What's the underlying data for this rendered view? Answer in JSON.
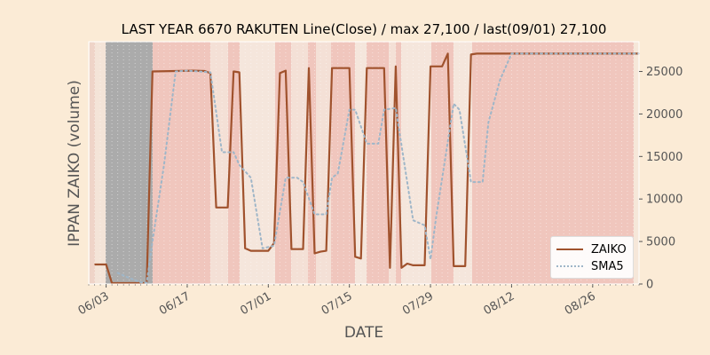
{
  "chart_data": {
    "type": "line",
    "title": "LAST YEAR 6670 RAKUTEN Line(Close) / max 27,100 / last(09/01) 27,100",
    "xlabel": "DATE",
    "ylabel": "IPPAN ZAIKO (volume)",
    "ylim": [
      0,
      28500
    ],
    "yticks": [
      0,
      5000,
      10000,
      15000,
      20000,
      25000
    ],
    "xticks": [
      {
        "label": "06/03",
        "day": 2
      },
      {
        "label": "06/17",
        "day": 16
      },
      {
        "label": "07/01",
        "day": 30
      },
      {
        "label": "07/15",
        "day": 44
      },
      {
        "label": "07/29",
        "day": 58
      },
      {
        "label": "08/12",
        "day": 72
      },
      {
        "label": "08/26",
        "day": 86
      }
    ],
    "x_day_range": [
      -1,
      94
    ],
    "legend_position": "lower-right",
    "grid": false,
    "series": [
      {
        "name": "ZAIKO",
        "color": "#a0522d",
        "style": "solid",
        "points": [
          [
            0,
            2300
          ],
          [
            2,
            2300
          ],
          [
            3,
            100
          ],
          [
            9,
            100
          ],
          [
            10,
            25000
          ],
          [
            17,
            25100
          ],
          [
            19,
            25050
          ],
          [
            20,
            24800
          ],
          [
            21,
            9000
          ],
          [
            23,
            9000
          ],
          [
            24,
            25000
          ],
          [
            25,
            24900
          ],
          [
            26,
            4200
          ],
          [
            27,
            3900
          ],
          [
            30,
            3900
          ],
          [
            31,
            4800
          ],
          [
            32,
            24800
          ],
          [
            33,
            25100
          ],
          [
            34,
            4100
          ],
          [
            36,
            4100
          ],
          [
            37,
            25400
          ],
          [
            38,
            3600
          ],
          [
            39,
            3800
          ],
          [
            40,
            3900
          ],
          [
            41,
            25400
          ],
          [
            44,
            25400
          ],
          [
            45,
            3200
          ],
          [
            46,
            3000
          ],
          [
            47,
            25400
          ],
          [
            50,
            25400
          ],
          [
            51,
            1900
          ],
          [
            52,
            25600
          ],
          [
            53,
            1900
          ],
          [
            54,
            2400
          ],
          [
            55,
            2200
          ],
          [
            57,
            2200
          ],
          [
            58,
            25600
          ],
          [
            60,
            25600
          ],
          [
            61,
            27100
          ],
          [
            62,
            2100
          ],
          [
            64,
            2100
          ],
          [
            65,
            27000
          ],
          [
            66,
            27100
          ],
          [
            94,
            27100
          ]
        ]
      },
      {
        "name": "SMA5",
        "color": "#9fb6c8",
        "style": "dotted",
        "points": [
          [
            4,
            1300
          ],
          [
            6,
            700
          ],
          [
            8,
            200
          ],
          [
            9,
            150
          ],
          [
            10,
            5000
          ],
          [
            12,
            14000
          ],
          [
            14,
            25000
          ],
          [
            16,
            25100
          ],
          [
            18,
            25000
          ],
          [
            20,
            24900
          ],
          [
            22,
            15500
          ],
          [
            24,
            15500
          ],
          [
            25,
            14000
          ],
          [
            27,
            12500
          ],
          [
            29,
            4200
          ],
          [
            31,
            4500
          ],
          [
            33,
            12500
          ],
          [
            35,
            12500
          ],
          [
            36,
            12000
          ],
          [
            38,
            8200
          ],
          [
            40,
            8200
          ],
          [
            41,
            12500
          ],
          [
            42,
            13000
          ],
          [
            44,
            20500
          ],
          [
            45,
            20500
          ],
          [
            47,
            16500
          ],
          [
            49,
            16500
          ],
          [
            50,
            20500
          ],
          [
            52,
            20700
          ],
          [
            55,
            7500
          ],
          [
            57,
            6900
          ],
          [
            58,
            2900
          ],
          [
            59,
            8000
          ],
          [
            62,
            21200
          ],
          [
            63,
            20500
          ],
          [
            65,
            12000
          ],
          [
            67,
            12000
          ],
          [
            68,
            19000
          ],
          [
            70,
            24000
          ],
          [
            72,
            27100
          ],
          [
            94,
            27100
          ]
        ]
      }
    ]
  }
}
